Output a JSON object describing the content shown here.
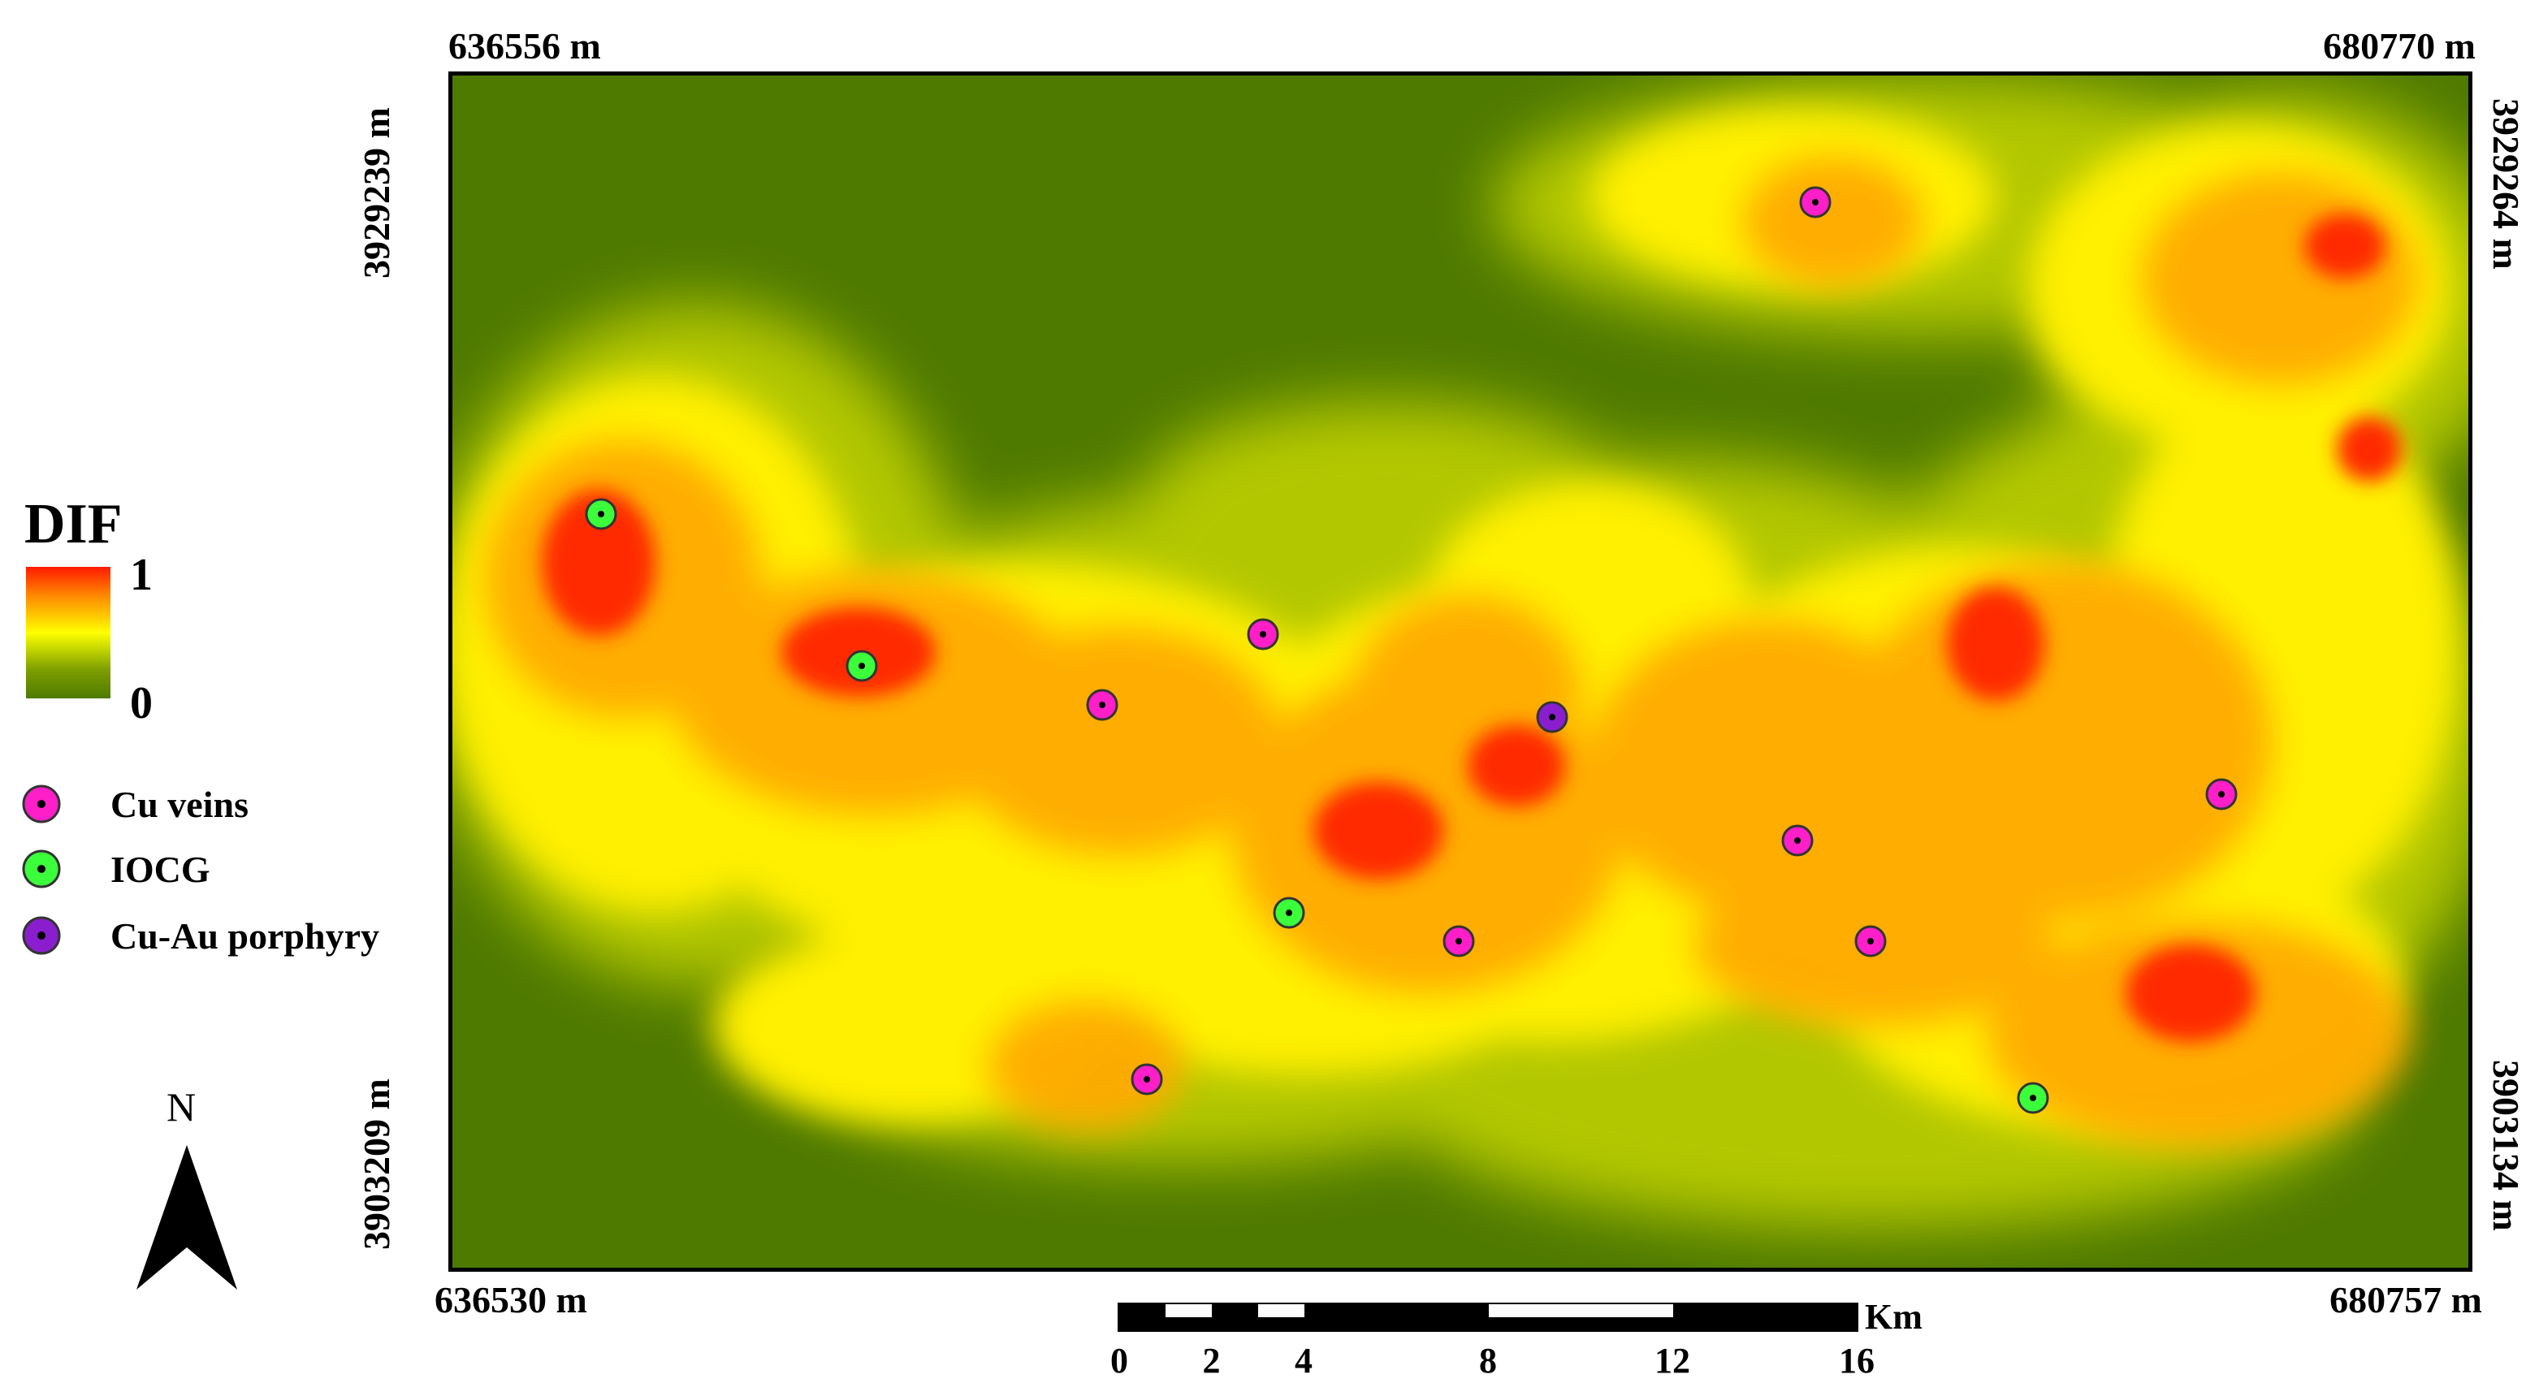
{
  "map": {
    "corners": {
      "top_left": "636556 m",
      "top_right": "680770 m",
      "bottom_left": "636530 m",
      "bottom_right": "680757 m",
      "left_top": "3929239 m",
      "left_bottom": "3903209 m",
      "right_top": "3929264 m",
      "right_bottom": "3903134 m"
    },
    "colors": {
      "background_low": "#4e7a00",
      "high": "#ff1a00",
      "mid": "#ffff00",
      "cu_veins": "#ff1fc8",
      "iocg": "#3cff3c",
      "cu_au_porphyry": "#8a1ecf"
    }
  },
  "legend": {
    "title": "DIF",
    "max_label": "1",
    "min_label": "0",
    "items": [
      {
        "label": "Cu veins",
        "color": "#ff1fc8"
      },
      {
        "label": "IOCG",
        "color": "#3cff3c"
      },
      {
        "label": "Cu-Au porphyry",
        "color": "#8a1ecf"
      }
    ]
  },
  "north": {
    "label": "N",
    "icon": "north-arrow-icon"
  },
  "scale": {
    "unit": "Km",
    "ticks": [
      "0",
      "2",
      "4",
      "8",
      "12",
      "16"
    ],
    "tick_values": [
      0,
      2,
      4,
      8,
      12,
      16
    ]
  }
}
